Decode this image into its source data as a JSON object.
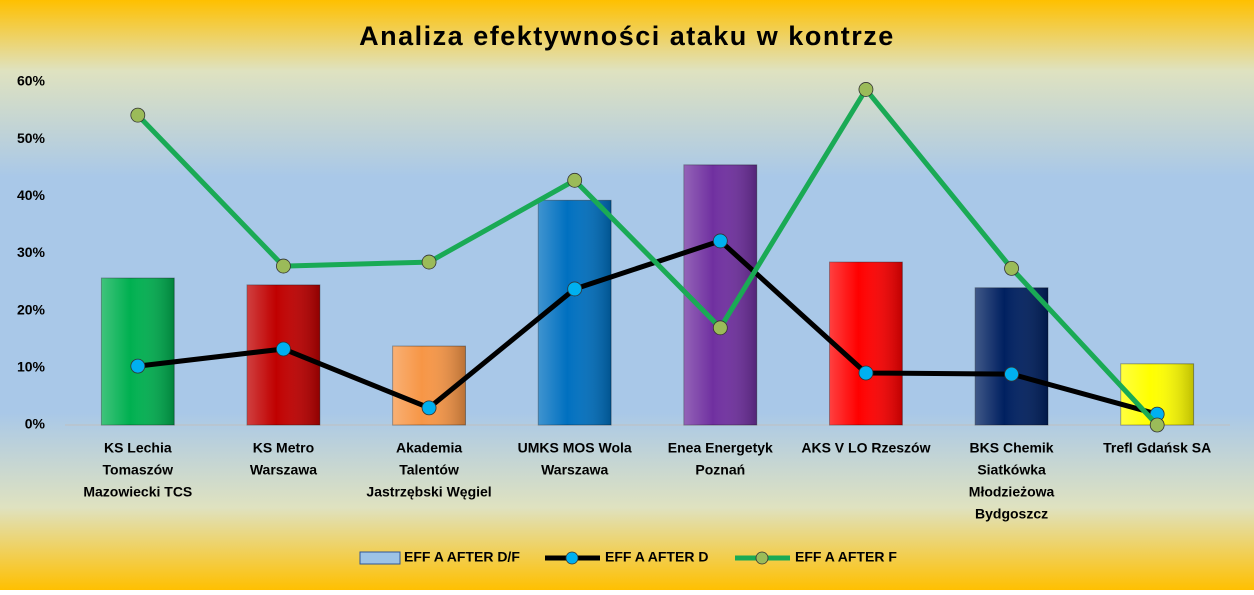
{
  "chart_data": {
    "type": "bar-line",
    "title": "Analiza efektywności ataku w kontrze",
    "categories": [
      [
        "KS Lechia",
        "Tomaszów",
        "Mazowiecki TCS"
      ],
      [
        "KS Metro",
        "Warszawa"
      ],
      [
        "Akademia",
        "Talentów",
        "Jastrzębski Węgiel"
      ],
      [
        "UMKS MOS Wola",
        "Warszawa"
      ],
      [
        "Enea Energetyk",
        "Poznań"
      ],
      [
        "AKS V LO Rzeszów"
      ],
      [
        "BKS Chemik",
        "Siatkówka",
        "Młodzieżowa",
        "Bydgoszcz"
      ],
      [
        "Trefl Gdańsk SA"
      ]
    ],
    "series": [
      {
        "name": "EFF A AFTER D/F",
        "type": "bar",
        "color": "#9dc3e6",
        "colors": [
          "#00b050",
          "#c00000",
          "#f79646",
          "#0070c0",
          "#7030a0",
          "#ff0000",
          "#002060",
          "#ffff00"
        ],
        "values": [
          25.7,
          24.5,
          13.8,
          39.3,
          45.5,
          28.5,
          24.0,
          10.7
        ]
      },
      {
        "name": "EFF A AFTER D",
        "type": "line",
        "color": "#000000",
        "marker_color": "#00b0f0",
        "values": [
          10.3,
          13.3,
          3.0,
          23.8,
          32.2,
          9.1,
          8.9,
          1.9
        ]
      },
      {
        "name": "EFF A AFTER F",
        "type": "line",
        "color": "#1aaa55",
        "marker_color": "#9bbb59",
        "values": [
          54.2,
          27.8,
          28.5,
          42.8,
          17.0,
          58.7,
          27.4,
          0
        ]
      }
    ],
    "ylim": [
      0,
      60
    ],
    "yticks": [
      {
        "value": 0,
        "label": "0%"
      },
      {
        "value": 10,
        "label": "10%"
      },
      {
        "value": 20,
        "label": "20%"
      },
      {
        "value": 30,
        "label": "30%"
      },
      {
        "value": 40,
        "label": "40%"
      },
      {
        "value": 50,
        "label": "50%"
      },
      {
        "value": 60,
        "label": "60%"
      }
    ],
    "grid": false,
    "legend": "bottom"
  }
}
